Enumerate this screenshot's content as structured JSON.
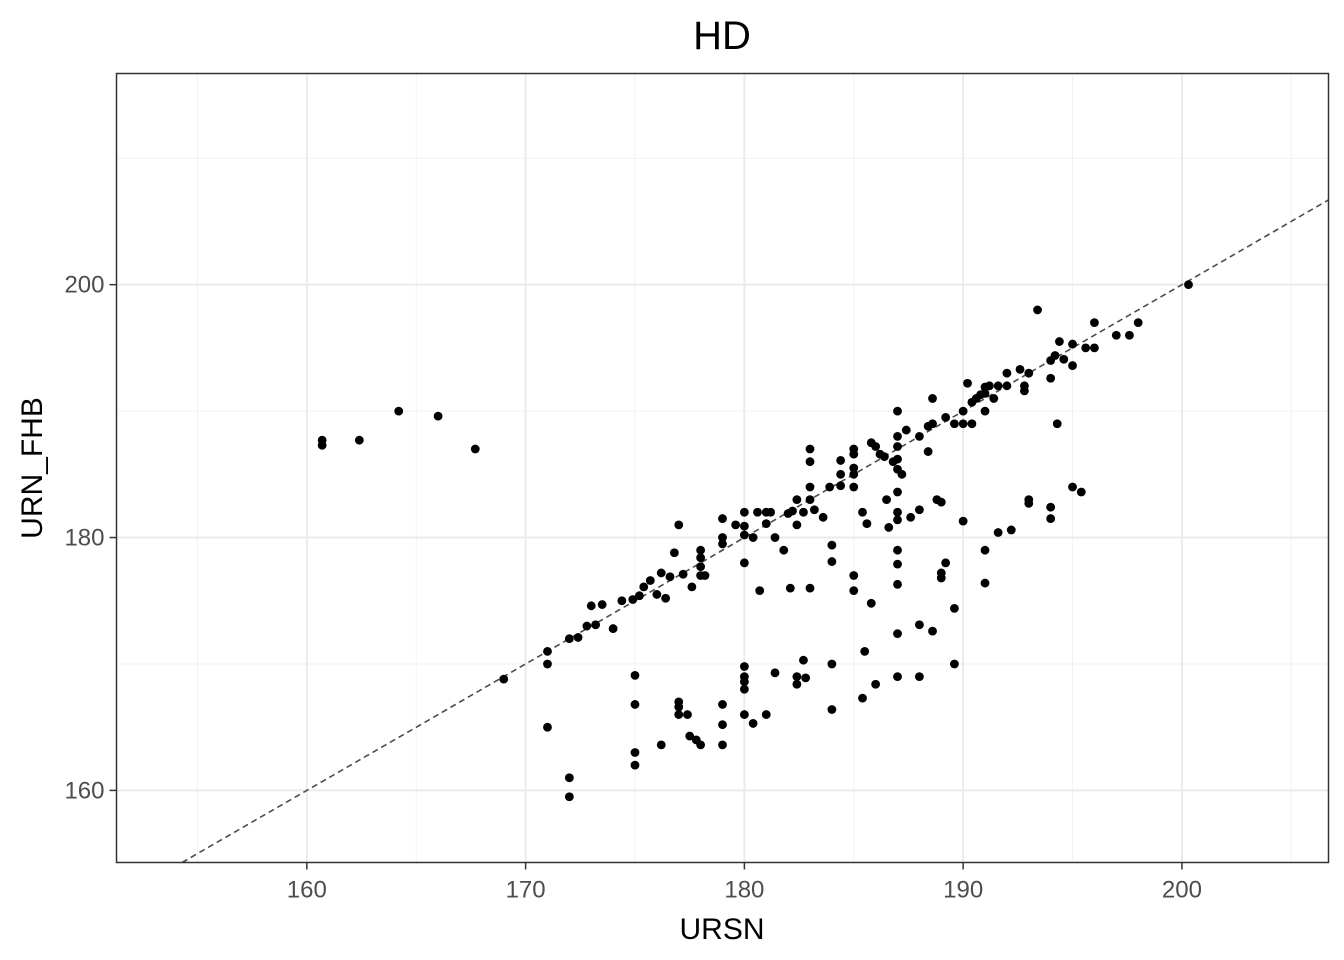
{
  "chart_data": {
    "type": "scatter",
    "title": "HD",
    "xlabel": "URSN",
    "ylabel": "URN_FHB",
    "xlim": [
      151.3,
      206.7
    ],
    "ylim": [
      154.3,
      216.7
    ],
    "x_ticks": [
      160,
      170,
      180,
      190,
      200
    ],
    "y_ticks": [
      160,
      180,
      200
    ],
    "grid": true,
    "theme": "black-and-white",
    "reference_line": {
      "type": "identity",
      "slope": 1,
      "intercept": 0,
      "style": "dashed",
      "color": "#4d4d4d"
    },
    "point_color": "#000000",
    "points": [
      [
        160.7,
        187.7
      ],
      [
        160.7,
        187.3
      ],
      [
        162.4,
        187.7
      ],
      [
        164.2,
        190.0
      ],
      [
        166.0,
        189.6
      ],
      [
        167.7,
        187.0
      ],
      [
        169.0,
        168.8
      ],
      [
        171.0,
        171.0
      ],
      [
        171.0,
        170.0
      ],
      [
        171.0,
        165.0
      ],
      [
        172.0,
        172.0
      ],
      [
        172.4,
        172.1
      ],
      [
        172.0,
        161.0
      ],
      [
        172.0,
        159.5
      ],
      [
        172.8,
        173.0
      ],
      [
        173.2,
        173.1
      ],
      [
        173.0,
        174.6
      ],
      [
        173.5,
        174.7
      ],
      [
        174.0,
        172.8
      ],
      [
        174.4,
        175.0
      ],
      [
        174.9,
        175.1
      ],
      [
        175.2,
        175.4
      ],
      [
        175.4,
        176.1
      ],
      [
        175.7,
        176.6
      ],
      [
        176.2,
        177.2
      ],
      [
        176.0,
        175.5
      ],
      [
        176.4,
        175.2
      ],
      [
        176.6,
        176.9
      ],
      [
        175.0,
        169.1
      ],
      [
        175.0,
        166.8
      ],
      [
        175.0,
        163.0
      ],
      [
        175.0,
        162.0
      ],
      [
        176.2,
        163.6
      ],
      [
        176.8,
        178.8
      ],
      [
        177.0,
        181.0
      ],
      [
        177.2,
        177.1
      ],
      [
        177.6,
        176.1
      ],
      [
        177.0,
        167.0
      ],
      [
        177.0,
        166.6
      ],
      [
        177.0,
        166.0
      ],
      [
        177.4,
        166.0
      ],
      [
        177.5,
        164.3
      ],
      [
        177.8,
        164.0
      ],
      [
        178.0,
        163.6
      ],
      [
        178.0,
        179.0
      ],
      [
        178.0,
        178.4
      ],
      [
        178.0,
        177.7
      ],
      [
        178.0,
        177.0
      ],
      [
        178.2,
        177.0
      ],
      [
        179.0,
        181.5
      ],
      [
        179.0,
        180.0
      ],
      [
        179.0,
        179.5
      ],
      [
        179.0,
        166.8
      ],
      [
        179.0,
        165.2
      ],
      [
        179.0,
        163.6
      ],
      [
        179.6,
        181.0
      ],
      [
        180.0,
        182.0
      ],
      [
        180.0,
        180.9
      ],
      [
        180.0,
        180.2
      ],
      [
        180.4,
        180.0
      ],
      [
        180.0,
        178.0
      ],
      [
        180.0,
        169.8
      ],
      [
        180.0,
        169.0
      ],
      [
        180.0,
        168.6
      ],
      [
        180.0,
        168.0
      ],
      [
        180.0,
        166.0
      ],
      [
        180.4,
        165.3
      ],
      [
        180.6,
        182.0
      ],
      [
        181.0,
        181.1
      ],
      [
        181.0,
        182.0
      ],
      [
        181.2,
        182.0
      ],
      [
        181.4,
        180.0
      ],
      [
        180.7,
        175.8
      ],
      [
        181.0,
        166.0
      ],
      [
        181.4,
        169.3
      ],
      [
        181.8,
        179.0
      ],
      [
        182.0,
        181.9
      ],
      [
        182.2,
        182.1
      ],
      [
        182.4,
        181.0
      ],
      [
        182.4,
        183.0
      ],
      [
        182.7,
        182.0
      ],
      [
        182.1,
        176.0
      ],
      [
        182.4,
        169.0
      ],
      [
        182.4,
        168.4
      ],
      [
        182.8,
        168.9
      ],
      [
        182.7,
        170.3
      ],
      [
        183.0,
        183.0
      ],
      [
        183.0,
        184.0
      ],
      [
        183.0,
        186.0
      ],
      [
        183.0,
        187.0
      ],
      [
        183.2,
        182.2
      ],
      [
        183.6,
        181.6
      ],
      [
        183.9,
        184.0
      ],
      [
        184.0,
        178.1
      ],
      [
        184.0,
        179.4
      ],
      [
        184.0,
        170.0
      ],
      [
        184.0,
        166.4
      ],
      [
        183.0,
        176.0
      ],
      [
        184.4,
        184.1
      ],
      [
        184.4,
        185.0
      ],
      [
        184.4,
        186.1
      ],
      [
        185.0,
        184.0
      ],
      [
        185.0,
        185.0
      ],
      [
        185.0,
        185.5
      ],
      [
        185.0,
        186.6
      ],
      [
        185.0,
        187.0
      ],
      [
        185.4,
        182.0
      ],
      [
        185.6,
        181.1
      ],
      [
        185.0,
        177.0
      ],
      [
        185.0,
        175.8
      ],
      [
        185.5,
        171.0
      ],
      [
        185.4,
        167.3
      ],
      [
        185.8,
        174.8
      ],
      [
        186.0,
        168.4
      ],
      [
        185.8,
        187.5
      ],
      [
        186.0,
        187.2
      ],
      [
        186.4,
        186.4
      ],
      [
        186.5,
        183.0
      ],
      [
        186.6,
        180.8
      ],
      [
        186.2,
        186.6
      ],
      [
        186.8,
        186.0
      ],
      [
        187.0,
        190.0
      ],
      [
        187.0,
        188.0
      ],
      [
        187.0,
        187.2
      ],
      [
        187.0,
        186.2
      ],
      [
        187.0,
        185.4
      ],
      [
        187.0,
        183.6
      ],
      [
        187.0,
        182.0
      ],
      [
        187.0,
        181.4
      ],
      [
        187.0,
        179.0
      ],
      [
        187.0,
        177.9
      ],
      [
        187.0,
        176.3
      ],
      [
        187.0,
        172.4
      ],
      [
        187.0,
        169.0
      ],
      [
        187.2,
        185.0
      ],
      [
        187.4,
        188.5
      ],
      [
        187.6,
        181.6
      ],
      [
        188.0,
        188.0
      ],
      [
        188.0,
        182.2
      ],
      [
        188.0,
        173.1
      ],
      [
        188.0,
        169.0
      ],
      [
        188.4,
        188.8
      ],
      [
        188.6,
        189.0
      ],
      [
        188.4,
        186.8
      ],
      [
        188.6,
        191.0
      ],
      [
        188.8,
        183.0
      ],
      [
        188.6,
        172.6
      ],
      [
        189.0,
        182.8
      ],
      [
        189.0,
        177.2
      ],
      [
        189.0,
        176.8
      ],
      [
        189.2,
        189.5
      ],
      [
        189.6,
        189.0
      ],
      [
        189.2,
        178.0
      ],
      [
        189.6,
        174.4
      ],
      [
        189.6,
        170.0
      ],
      [
        190.0,
        190.0
      ],
      [
        190.0,
        189.0
      ],
      [
        190.4,
        189.0
      ],
      [
        190.4,
        190.7
      ],
      [
        190.2,
        192.2
      ],
      [
        190.0,
        181.3
      ],
      [
        190.6,
        191.0
      ],
      [
        190.8,
        191.3
      ],
      [
        191.0,
        191.9
      ],
      [
        191.0,
        191.4
      ],
      [
        191.2,
        192.0
      ],
      [
        191.0,
        190.0
      ],
      [
        191.0,
        179.0
      ],
      [
        191.0,
        176.4
      ],
      [
        191.6,
        180.4
      ],
      [
        191.4,
        191.0
      ],
      [
        191.6,
        192.0
      ],
      [
        192.0,
        193.0
      ],
      [
        192.0,
        192.0
      ],
      [
        192.2,
        180.6
      ],
      [
        192.6,
        193.3
      ],
      [
        192.8,
        192.0
      ],
      [
        192.8,
        191.6
      ],
      [
        193.0,
        193.0
      ],
      [
        193.0,
        183.0
      ],
      [
        193.0,
        182.7
      ],
      [
        193.4,
        198.0
      ],
      [
        194.0,
        194.0
      ],
      [
        194.0,
        192.6
      ],
      [
        194.0,
        182.4
      ],
      [
        194.0,
        181.5
      ],
      [
        194.2,
        194.4
      ],
      [
        194.4,
        195.5
      ],
      [
        194.3,
        189.0
      ],
      [
        194.6,
        194.1
      ],
      [
        195.0,
        195.3
      ],
      [
        195.0,
        193.6
      ],
      [
        195.0,
        184.0
      ],
      [
        195.4,
        183.6
      ],
      [
        195.6,
        195.0
      ],
      [
        196.0,
        197.0
      ],
      [
        196.0,
        195.0
      ],
      [
        197.0,
        196.0
      ],
      [
        197.6,
        196.0
      ],
      [
        198.0,
        197.0
      ],
      [
        200.3,
        200.0
      ]
    ]
  }
}
